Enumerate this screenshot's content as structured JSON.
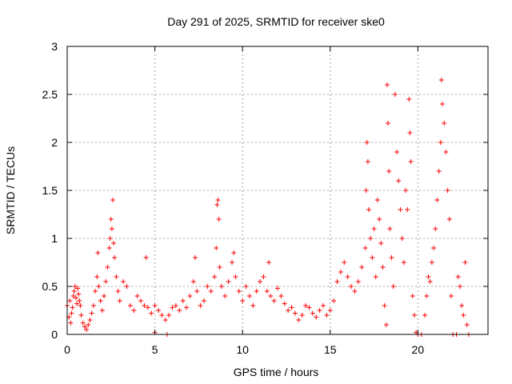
{
  "chart_data": {
    "type": "scatter",
    "title": "Day 291 of 2025, SRMTID for receiver ske0",
    "xlabel": "GPS time / hours",
    "ylabel": "SRMTID / TECUs",
    "xlim": [
      0,
      24
    ],
    "ylim": [
      0,
      3
    ],
    "x_ticks": [
      "0",
      "5",
      "10",
      "15",
      "20"
    ],
    "y_ticks": [
      "0",
      "0.5",
      "1",
      "1.5",
      "2",
      "2.5",
      "3"
    ],
    "grid": true,
    "marker": "plus",
    "color": "#ff0000",
    "series": [
      {
        "name": "SRMTID",
        "points": [
          [
            0.0,
            0.3
          ],
          [
            0.1,
            0.18
          ],
          [
            0.15,
            0.35
          ],
          [
            0.2,
            0.12
          ],
          [
            0.25,
            0.22
          ],
          [
            0.3,
            0.28
          ],
          [
            0.35,
            0.4
          ],
          [
            0.4,
            0.45
          ],
          [
            0.45,
            0.5
          ],
          [
            0.5,
            0.38
          ],
          [
            0.55,
            0.32
          ],
          [
            0.6,
            0.48
          ],
          [
            0.65,
            0.42
          ],
          [
            0.7,
            0.35
          ],
          [
            0.75,
            0.3
          ],
          [
            0.8,
            0.2
          ],
          [
            0.9,
            0.12
          ],
          [
            1.0,
            0.08
          ],
          [
            1.1,
            0.05
          ],
          [
            1.2,
            0.1
          ],
          [
            1.3,
            0.15
          ],
          [
            1.4,
            0.22
          ],
          [
            1.5,
            0.3
          ],
          [
            1.6,
            0.45
          ],
          [
            1.7,
            0.6
          ],
          [
            1.75,
            0.85
          ],
          [
            1.8,
            0.5
          ],
          [
            1.9,
            0.35
          ],
          [
            2.0,
            0.25
          ],
          [
            2.1,
            0.4
          ],
          [
            2.2,
            0.55
          ],
          [
            2.3,
            0.7
          ],
          [
            2.4,
            0.9
          ],
          [
            2.45,
            1.0
          ],
          [
            2.5,
            1.2
          ],
          [
            2.55,
            1.1
          ],
          [
            2.6,
            1.4
          ],
          [
            2.65,
            0.95
          ],
          [
            2.7,
            0.8
          ],
          [
            2.8,
            0.6
          ],
          [
            2.9,
            0.45
          ],
          [
            3.0,
            0.35
          ],
          [
            3.2,
            0.55
          ],
          [
            3.4,
            0.5
          ],
          [
            3.6,
            0.3
          ],
          [
            3.8,
            0.25
          ],
          [
            4.0,
            0.4
          ],
          [
            4.2,
            0.35
          ],
          [
            4.4,
            0.3
          ],
          [
            4.5,
            0.8
          ],
          [
            4.6,
            0.28
          ],
          [
            4.8,
            0.22
          ],
          [
            5.0,
            0.3
          ],
          [
            5.0,
            0.02
          ],
          [
            5.2,
            0.25
          ],
          [
            5.4,
            0.2
          ],
          [
            5.6,
            0.15
          ],
          [
            5.7,
            0.0
          ],
          [
            5.8,
            0.2
          ],
          [
            6.0,
            0.28
          ],
          [
            6.2,
            0.3
          ],
          [
            6.4,
            0.25
          ],
          [
            6.6,
            0.35
          ],
          [
            6.8,
            0.28
          ],
          [
            7.0,
            0.4
          ],
          [
            7.2,
            0.55
          ],
          [
            7.3,
            0.8
          ],
          [
            7.4,
            0.45
          ],
          [
            7.6,
            0.3
          ],
          [
            7.8,
            0.35
          ],
          [
            8.0,
            0.5
          ],
          [
            8.2,
            0.45
          ],
          [
            8.4,
            0.6
          ],
          [
            8.5,
            0.9
          ],
          [
            8.55,
            1.35
          ],
          [
            8.6,
            1.4
          ],
          [
            8.65,
            1.2
          ],
          [
            8.7,
            0.7
          ],
          [
            8.8,
            0.5
          ],
          [
            9.0,
            0.4
          ],
          [
            9.2,
            0.55
          ],
          [
            9.4,
            0.75
          ],
          [
            9.5,
            0.85
          ],
          [
            9.6,
            0.6
          ],
          [
            9.8,
            0.45
          ],
          [
            10.0,
            0.35
          ],
          [
            10.2,
            0.5
          ],
          [
            10.4,
            0.4
          ],
          [
            10.6,
            0.3
          ],
          [
            10.8,
            0.45
          ],
          [
            11.0,
            0.55
          ],
          [
            11.2,
            0.6
          ],
          [
            11.4,
            0.45
          ],
          [
            11.5,
            0.75
          ],
          [
            11.6,
            0.4
          ],
          [
            11.8,
            0.35
          ],
          [
            12.0,
            0.48
          ],
          [
            12.2,
            0.4
          ],
          [
            12.4,
            0.32
          ],
          [
            12.6,
            0.25
          ],
          [
            12.8,
            0.28
          ],
          [
            13.0,
            0.22
          ],
          [
            13.2,
            0.15
          ],
          [
            13.4,
            0.2
          ],
          [
            13.6,
            0.3
          ],
          [
            13.8,
            0.28
          ],
          [
            14.0,
            0.22
          ],
          [
            14.2,
            0.18
          ],
          [
            14.4,
            0.25
          ],
          [
            14.6,
            0.3
          ],
          [
            14.8,
            0.2
          ],
          [
            15.0,
            0.25
          ],
          [
            15.2,
            0.35
          ],
          [
            15.4,
            0.55
          ],
          [
            15.6,
            0.65
          ],
          [
            15.8,
            0.75
          ],
          [
            16.0,
            0.6
          ],
          [
            16.2,
            0.5
          ],
          [
            16.4,
            0.45
          ],
          [
            16.6,
            0.55
          ],
          [
            16.8,
            0.7
          ],
          [
            17.0,
            0.9
          ],
          [
            17.05,
            1.5
          ],
          [
            17.1,
            2.0
          ],
          [
            17.15,
            1.8
          ],
          [
            17.2,
            1.3
          ],
          [
            17.3,
            1.0
          ],
          [
            17.4,
            0.8
          ],
          [
            17.5,
            1.1
          ],
          [
            17.6,
            0.6
          ],
          [
            17.7,
            1.4
          ],
          [
            17.8,
            1.2
          ],
          [
            17.9,
            0.95
          ],
          [
            18.0,
            0.7
          ],
          [
            18.1,
            0.3
          ],
          [
            18.2,
            0.1
          ],
          [
            18.25,
            2.6
          ],
          [
            18.3,
            2.2
          ],
          [
            18.35,
            1.7
          ],
          [
            18.4,
            1.1
          ],
          [
            18.5,
            0.8
          ],
          [
            18.6,
            0.5
          ],
          [
            18.7,
            2.5
          ],
          [
            18.8,
            1.9
          ],
          [
            18.9,
            1.6
          ],
          [
            19.0,
            1.3
          ],
          [
            19.1,
            1.0
          ],
          [
            19.2,
            0.75
          ],
          [
            19.3,
            1.5
          ],
          [
            19.4,
            1.3
          ],
          [
            19.5,
            2.45
          ],
          [
            19.55,
            2.1
          ],
          [
            19.6,
            1.8
          ],
          [
            19.7,
            0.4
          ],
          [
            19.8,
            0.2
          ],
          [
            19.9,
            0.02
          ],
          [
            20.0,
            0.0
          ],
          [
            20.2,
            0.0
          ],
          [
            20.4,
            0.2
          ],
          [
            20.5,
            0.4
          ],
          [
            20.6,
            0.6
          ],
          [
            20.7,
            0.55
          ],
          [
            20.8,
            0.75
          ],
          [
            20.9,
            0.9
          ],
          [
            21.0,
            1.1
          ],
          [
            21.1,
            1.4
          ],
          [
            21.2,
            1.7
          ],
          [
            21.3,
            2.0
          ],
          [
            21.35,
            2.65
          ],
          [
            21.4,
            2.4
          ],
          [
            21.5,
            2.2
          ],
          [
            21.6,
            1.9
          ],
          [
            21.7,
            1.5
          ],
          [
            21.8,
            1.2
          ],
          [
            21.9,
            0.4
          ],
          [
            22.0,
            0.0
          ],
          [
            22.2,
            0.0
          ],
          [
            22.3,
            0.6
          ],
          [
            22.4,
            0.5
          ],
          [
            22.5,
            0.3
          ],
          [
            22.6,
            0.2
          ],
          [
            22.7,
            0.75
          ],
          [
            22.8,
            0.1
          ],
          [
            22.9,
            0.0
          ]
        ]
      }
    ]
  }
}
